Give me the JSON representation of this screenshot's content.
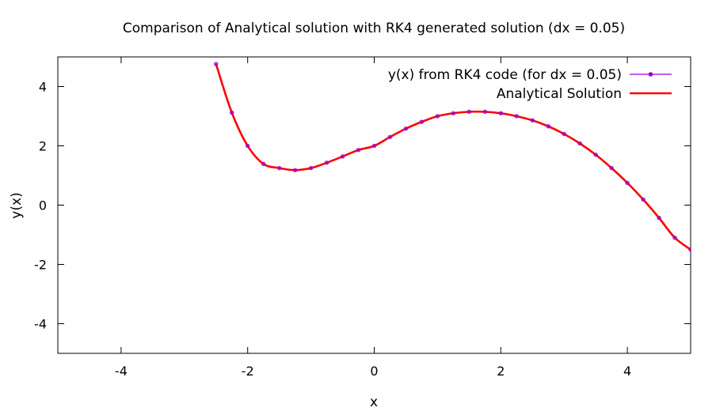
{
  "chart_data": {
    "type": "line",
    "title": "Comparison of Analytical solution with RK4 generated solution (dx = 0.05)",
    "xlabel": "x",
    "ylabel": "y(x)",
    "xlim": [
      -5,
      5
    ],
    "ylim": [
      -5,
      5
    ],
    "xticks": [
      "-4",
      "-2",
      "0",
      "2",
      "4"
    ],
    "yticks": [
      "4",
      "2",
      "0",
      "-2",
      "-4"
    ],
    "legend_position": "top-right",
    "series": [
      {
        "name": "y(x) from RK4 code (for dx = 0.05)",
        "style": "line-with-points",
        "color": "#9400d3",
        "marker_color": "#9400d3",
        "x": [
          -2.5,
          -2.25,
          -2.0,
          -1.75,
          -1.5,
          -1.25,
          -1.0,
          -0.75,
          -0.5,
          -0.25,
          0.0,
          0.25,
          0.5,
          0.75,
          1.0,
          1.25,
          1.5,
          1.75,
          2.0,
          2.25,
          2.5,
          2.75,
          3.0,
          3.25,
          3.5,
          3.75,
          4.0,
          4.25,
          4.5,
          4.75,
          5.0
        ],
        "y": [
          4.76,
          3.12,
          2.0,
          1.39,
          1.25,
          1.18,
          1.25,
          1.43,
          1.64,
          1.86,
          2.0,
          2.3,
          2.58,
          2.81,
          3.0,
          3.1,
          3.15,
          3.15,
          3.1,
          3.0,
          2.86,
          2.66,
          2.4,
          2.08,
          1.7,
          1.25,
          0.75,
          0.19,
          -0.43,
          -1.1,
          -1.5
        ]
      },
      {
        "name": "Analytical Solution",
        "style": "line",
        "color": "#ff0000",
        "x": [
          -2.5,
          -2.25,
          -2.0,
          -1.75,
          -1.5,
          -1.25,
          -1.0,
          -0.75,
          -0.5,
          -0.25,
          0.0,
          0.25,
          0.5,
          0.75,
          1.0,
          1.25,
          1.5,
          1.75,
          2.0,
          2.25,
          2.5,
          2.75,
          3.0,
          3.25,
          3.5,
          3.75,
          4.0,
          4.25,
          4.5,
          4.75,
          5.0
        ],
        "y": [
          4.76,
          3.12,
          2.0,
          1.39,
          1.25,
          1.18,
          1.25,
          1.43,
          1.64,
          1.86,
          2.0,
          2.3,
          2.58,
          2.81,
          3.0,
          3.1,
          3.15,
          3.15,
          3.1,
          3.0,
          2.86,
          2.66,
          2.4,
          2.08,
          1.7,
          1.25,
          0.75,
          0.19,
          -0.43,
          -1.1,
          -1.5
        ]
      }
    ]
  }
}
